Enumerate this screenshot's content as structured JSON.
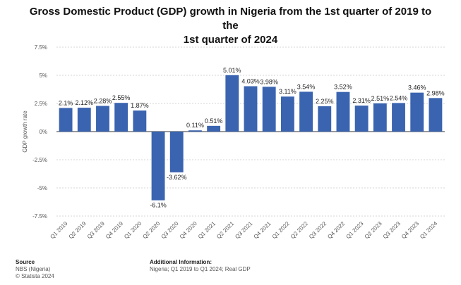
{
  "page": {
    "title_line1": "Gross Domestic Product (GDP) growth in Nigeria from the 1st quarter of 2019 to the",
    "title_line2": "1st quarter of 2024"
  },
  "footer": {
    "source_heading": "Source",
    "source_line1": "NBS (Nigeria)",
    "source_line2": "© Statista 2024",
    "info_heading": "Additional Information:",
    "info_line1": "Nigeria; Q1 2019 to Q1 2024; Real GDP"
  },
  "colors": {
    "bar": "#3a64b0",
    "grid": "#c8c8c8",
    "zero_line": "#333333",
    "tick_text": "#555555",
    "label_text": "#222222"
  },
  "chart_data": {
    "type": "bar",
    "title": "Gross Domestic Product (GDP) growth in Nigeria from the 1st quarter of 2019 to the 1st quarter of 2024",
    "xlabel": "",
    "ylabel": "GDP growth rate",
    "ylim": [
      -7.5,
      7.5
    ],
    "yticks": [
      7.5,
      5,
      2.5,
      0,
      -2.5,
      -5,
      -7.5
    ],
    "ytick_labels": [
      "7.5%",
      "5%",
      "2.5%",
      "0%",
      "-2.5%",
      "-5%",
      "-7.5%"
    ],
    "grid": true,
    "categories": [
      "Q1 2019",
      "Q2 2019",
      "Q3 2019",
      "Q4 2019",
      "Q1 2020",
      "Q2 2020",
      "Q3 2020",
      "Q4 2020",
      "Q1 2021",
      "Q2 2021",
      "Q3 2021",
      "Q4 2021",
      "Q1 2022",
      "Q2 2022",
      "Q3 2022",
      "Q4 2022",
      "Q1 2023",
      "Q2 2023",
      "Q3 2023",
      "Q4 2023",
      "Q1 2024"
    ],
    "values": [
      2.1,
      2.12,
      2.28,
      2.55,
      1.87,
      -6.1,
      -3.62,
      0.11,
      0.51,
      5.01,
      4.03,
      3.98,
      3.11,
      3.54,
      2.25,
      3.52,
      2.31,
      2.51,
      2.54,
      3.46,
      2.98
    ],
    "value_labels": [
      "2.1%",
      "2.12%",
      "2.28%",
      "2.55%",
      "1.87%",
      "-6.1%",
      "-3.62%",
      "0.11%",
      "0.51%",
      "5.01%",
      "4.03%",
      "3.98%",
      "3.11%",
      "3.54%",
      "2.25%",
      "3.52%",
      "2.31%",
      "2.51%",
      "2.54%",
      "3.46%",
      "2.98%"
    ]
  }
}
